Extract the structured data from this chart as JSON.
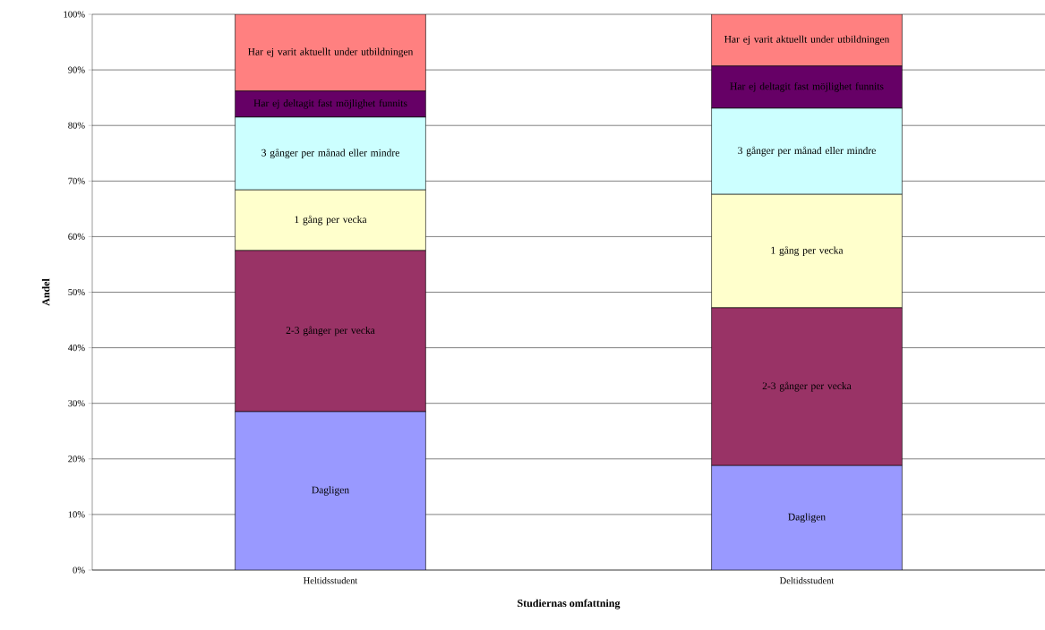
{
  "chart_data": {
    "type": "bar",
    "stacked": true,
    "xlabel": "Studiernas omfattning",
    "ylabel": "Andel",
    "categories": [
      "Heltidsstudent",
      "Deltidsstudent"
    ],
    "series": [
      {
        "name": "Dagligen",
        "color": "#9999ff",
        "values": [
          28.5,
          18.8
        ]
      },
      {
        "name": "2-3 gånger per vecka",
        "color": "#993366",
        "values": [
          29.0,
          28.4
        ]
      },
      {
        "name": "1 gång per vecka",
        "color": "#ffffcc",
        "values": [
          10.9,
          20.4
        ]
      },
      {
        "name": "3 gånger per månad eller mindre",
        "color": "#ccffff",
        "values": [
          13.1,
          15.5
        ]
      },
      {
        "name": "Har ej deltagit fast möjlighet funnits",
        "color": "#660066",
        "values": [
          4.7,
          7.6
        ]
      },
      {
        "name": "Har ej varit aktuellt under utbildningen",
        "color": "#ff8080",
        "values": [
          13.8,
          9.3
        ]
      }
    ],
    "ylim": [
      0,
      100
    ],
    "yticks": [
      {
        "value": 0,
        "label": "0%"
      },
      {
        "value": 10,
        "label": "10%"
      },
      {
        "value": 20,
        "label": "20%"
      },
      {
        "value": 30,
        "label": "30%"
      },
      {
        "value": 40,
        "label": "40%"
      },
      {
        "value": 50,
        "label": "50%"
      },
      {
        "value": 60,
        "label": "60%"
      },
      {
        "value": 70,
        "label": "70%"
      },
      {
        "value": 80,
        "label": "80%"
      },
      {
        "value": 90,
        "label": "90%"
      },
      {
        "value": 100,
        "label": "100%"
      }
    ],
    "grid": "y",
    "legend": false
  }
}
